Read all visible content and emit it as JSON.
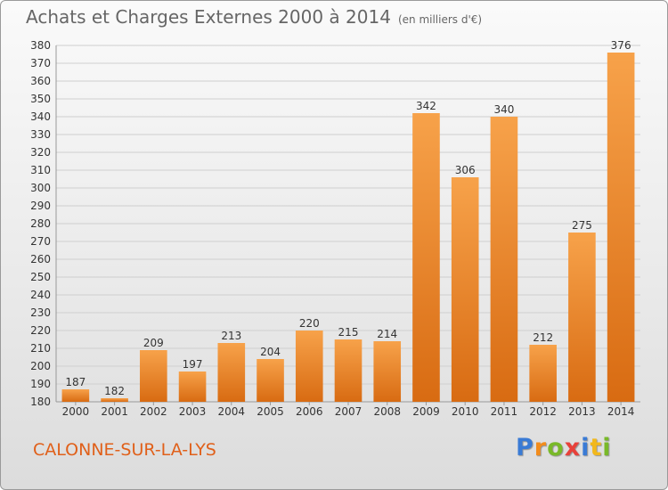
{
  "title": "Achats et Charges Externes 2000 à 2014",
  "unit": "(en milliers d'€)",
  "location": "CALONNE-SUR-LA-LYS",
  "logo": {
    "text": "Proxiti",
    "letters": [
      {
        "c": "P",
        "color": "#3a7bd5"
      },
      {
        "c": "r",
        "color": "#f28c1c"
      },
      {
        "c": "o",
        "color": "#79b929"
      },
      {
        "c": "x",
        "color": "#e8413a"
      },
      {
        "c": "i",
        "color": "#3a7bd5"
      },
      {
        "c": "t",
        "color": "#f2b81c"
      },
      {
        "c": "i",
        "color": "#79b929"
      }
    ]
  },
  "chart_data": {
    "type": "bar",
    "categories": [
      "2000",
      "2001",
      "2002",
      "2003",
      "2004",
      "2005",
      "2006",
      "2007",
      "2008",
      "2009",
      "2010",
      "2011",
      "2012",
      "2013",
      "2014"
    ],
    "values": [
      187,
      182,
      209,
      197,
      213,
      204,
      220,
      215,
      214,
      342,
      306,
      340,
      212,
      275,
      376
    ],
    "ylim": [
      180,
      380
    ],
    "ytick_step": 10,
    "grid": true,
    "bar_color_top": "#f7a24a",
    "bar_color_bottom": "#d86b12"
  }
}
